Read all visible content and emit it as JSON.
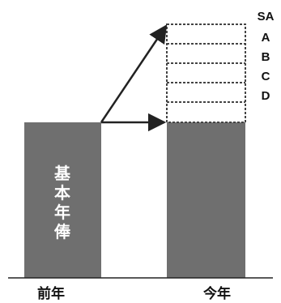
{
  "colors": {
    "bar_fill": "#6f6f6f",
    "line": "#222222",
    "dashed": "#444444",
    "background": "#ffffff"
  },
  "grade_labels": [
    "SA",
    "A",
    "B",
    "C",
    "D"
  ],
  "previous_bar": {
    "label_chars": [
      "基",
      "本",
      "年",
      "俸"
    ]
  },
  "x_labels": {
    "previous": "前年",
    "current": "今年"
  }
}
